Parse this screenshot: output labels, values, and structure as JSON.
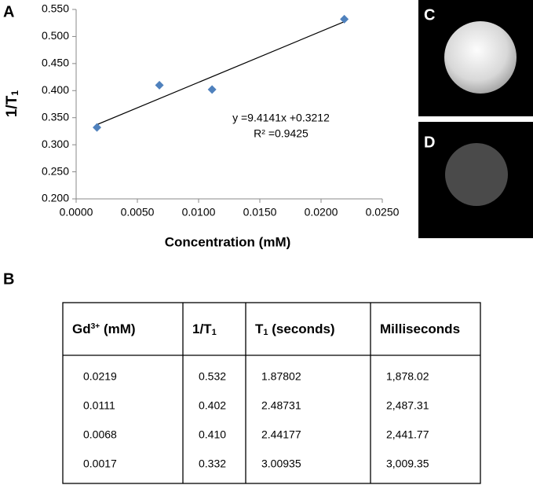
{
  "panel_labels": {
    "a": "A",
    "b": "B",
    "c": "C",
    "d": "D"
  },
  "chart_data": {
    "type": "scatter",
    "x_label": "Concentration (mM)",
    "y_label": [
      {
        "text": "1/T"
      },
      {
        "text": "1",
        "sub": true
      }
    ],
    "x": [
      0.0219,
      0.0111,
      0.0068,
      0.0017
    ],
    "values": [
      0.532,
      0.402,
      0.41,
      0.332
    ],
    "color": "#4f81bd",
    "trendline": {
      "slope": 9.4141,
      "intercept": 0.3212,
      "equation": "y =9.4141x +0.3212",
      "r2": "R² =0.9425"
    },
    "xlim": [
      0,
      0.025
    ],
    "xticks": [
      {
        "value": 0,
        "label": "0.0000"
      },
      {
        "value": 0.005,
        "label": "0.0050"
      },
      {
        "value": 0.01,
        "label": "0.0100"
      },
      {
        "value": 0.015,
        "label": "0.0150"
      },
      {
        "value": 0.02,
        "label": "0.0200"
      },
      {
        "value": 0.025,
        "label": "0.0250"
      }
    ],
    "ylim": [
      0.2,
      0.55
    ],
    "yticks": [
      {
        "value": 0.2,
        "label": "0.200"
      },
      {
        "value": 0.25,
        "label": "0.250"
      },
      {
        "value": 0.3,
        "label": "0.300"
      },
      {
        "value": 0.35,
        "label": "0.350"
      },
      {
        "value": 0.4,
        "label": "0.400"
      },
      {
        "value": 0.45,
        "label": "0.450"
      },
      {
        "value": 0.5,
        "label": "0.500"
      },
      {
        "value": 0.55,
        "label": "0.550"
      }
    ],
    "grid": false
  },
  "table": {
    "header": [
      [
        {
          "text": "Gd"
        },
        {
          "text": "3+",
          "sup": true
        },
        {
          "text": " (mM)"
        }
      ],
      [
        {
          "text": "1/T"
        },
        {
          "text": "1",
          "sub": true
        }
      ],
      [
        {
          "text": "T"
        },
        {
          "text": "1",
          "sub": true
        },
        {
          "text": " (seconds)"
        }
      ],
      [
        {
          "text": "Milliseconds"
        }
      ]
    ],
    "rows": [
      [
        "0.0219",
        "0.532",
        "1.87802",
        "1,878.02"
      ],
      [
        "0.0111",
        "0.402",
        "2.48731",
        "2,487.31"
      ],
      [
        "0.0068",
        "0.410",
        "2.44177",
        "2,441.77"
      ],
      [
        "0.0017",
        "0.332",
        "3.00935",
        "3,009.35"
      ]
    ]
  }
}
